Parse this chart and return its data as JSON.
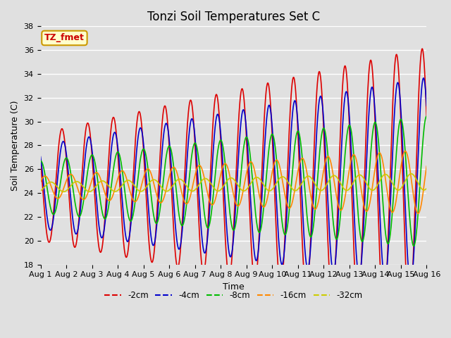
{
  "title": "Tonzi Soil Temperatures Set C",
  "xlabel": "Time",
  "ylabel": "Soil Temperature (C)",
  "ylim": [
    18,
    38
  ],
  "xlim": [
    0,
    15
  ],
  "xtick_labels": [
    "Aug 1",
    "Aug 2",
    "Aug 3",
    "Aug 4",
    "Aug 5",
    "Aug 6",
    "Aug 7",
    "Aug 8",
    "Aug 9",
    "Aug 10",
    "Aug 11",
    "Aug 12",
    "Aug 13",
    "Aug 14",
    "Aug 15",
    "Aug 16"
  ],
  "ytick_vals": [
    18,
    20,
    22,
    24,
    26,
    28,
    30,
    32,
    34,
    36,
    38
  ],
  "annotation_text": "TZ_fmet",
  "annotation_color": "#cc0000",
  "annotation_bg": "#ffffcc",
  "annotation_border": "#cc9900",
  "series": [
    {
      "label": "-2cm",
      "color": "#dd0000",
      "lw": 1.2
    },
    {
      "label": "-4cm",
      "color": "#0000cc",
      "lw": 1.2
    },
    {
      "label": "-8cm",
      "color": "#00bb00",
      "lw": 1.2
    },
    {
      "label": "-16cm",
      "color": "#ff8800",
      "lw": 1.2
    },
    {
      "label": "-32cm",
      "color": "#cccc00",
      "lw": 1.2
    }
  ],
  "bg_color": "#e0e0e0",
  "grid_color": "#ffffff",
  "title_fontsize": 12,
  "label_fontsize": 9,
  "tick_fontsize": 8
}
